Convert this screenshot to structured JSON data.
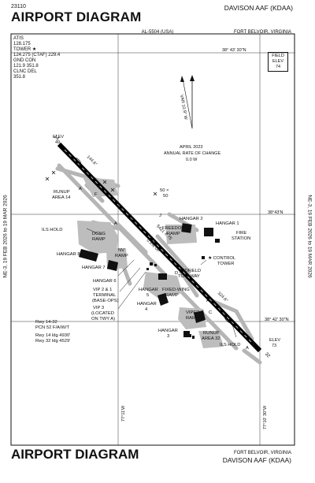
{
  "header": {
    "chart_number": "23110",
    "title": "AIRPORT DIAGRAM",
    "airport": "DAVISON AAF  (KDAA)",
    "chart_id": "AL-5504 (USA)",
    "location": "FORT BELVOIR, VIRGINIA"
  },
  "footer": {
    "title": "AIRPORT DIAGRAM",
    "location": "FORT BELVOIR, VIRGINIA",
    "airport": "DAVISON AAF  (KDAA)"
  },
  "side_margin": {
    "left": "NE-3, 19 FEB 2026 to 19 MAR 2026",
    "right": "NE-3, 19 FEB 2026 to 19 MAR 2026"
  },
  "frequencies": [
    "ATIS",
    "128.175",
    "TOWER ★",
    "124.275 (CTAF)  229.4",
    "GND CON",
    "121.9  351.8",
    "CLNC DEL",
    "351.8"
  ],
  "field_elev": {
    "line1": "FIELD",
    "line2": "ELEV",
    "value": "74"
  },
  "lat_top": "38° 43′ 30″N",
  "lat_mid": "38°43′N",
  "lat_bottom": "38° 42′ 30″N",
  "lon_left": "77°11′W",
  "lon_right": "77°10′ 30″W",
  "magvar": {
    "var_label": "VAR 10.9° W",
    "date": "APRIL 2023",
    "rate_title": "ANNUAL RATE OF CHANGE",
    "rate": "0.0 W"
  },
  "runway": {
    "end_nw": "14",
    "end_se": "32",
    "hdg_nw": "144.6°",
    "hdg_se": "324.6°",
    "dims": "5421 X 75",
    "slope": "0.5% UP",
    "elev_nw_label": "ELEV",
    "elev_nw": "49",
    "elev_se_label": "ELEV",
    "elev_se": "73"
  },
  "labels": {
    "runup14_l1": "RUNUP",
    "runup14_l2": "AREA 14",
    "ils_hold_nw": "ILS HOLD",
    "dcng_l1": "DCNG",
    "dcng_l2": "RAMP",
    "hangar8": "HANGAR 8",
    "nv_l1": "NV",
    "nv_l2": "RAMP",
    "hangar7": "HANGAR 7",
    "hangar6": "HANGAR 6",
    "vip21_l1": "VIP 2 & 1",
    "vip21_l2": "TERMINAL",
    "vip21_l3": "(BASE-OPS)",
    "vip3_l1": "VIP 3",
    "vip3_l2": "(LOCATED",
    "vip3_l3": "ON TWY A)",
    "hangar2": "HANGAR 2",
    "hangar1": "HANGAR 1",
    "freedom_l1": "FREEDOM",
    "freedom_l2": "RAMP",
    "fire_l1": "FIRE",
    "fire_l2": "STATION",
    "tower_l1": "★ CONTROL",
    "tower_l2": "TOWER",
    "midfield_l1": "MIDFIELD",
    "midfield_l2": "TOW-WAY",
    "hangar5": "HANGAR",
    "hangar5_num": "5",
    "fixedwing_l1": "FIXED-WING",
    "fixedwing_l2": "RAMP",
    "hangar4_l1": "HANGAR",
    "hangar4_l2": "4",
    "viper_l1": "VIPER",
    "viper_l2": "RAMP",
    "hangar3_l1": "HANGAR",
    "hangar3_l2": "3",
    "runup32_l1": "RUNUP",
    "runup32_l2": "AREA 32",
    "ils_hold_se": "ILS HOLD",
    "obstacle": "50 ×",
    "obstacle2": "50"
  },
  "taxiways": [
    "A",
    "B",
    "C",
    "D",
    "E",
    "F",
    "J"
  ],
  "runway_data": [
    "Rwy 14-32",
    "PCN 52 F/A/W/T",
    "Rwy 14 ldg 4930′",
    "Rwy 32 ldg 4529′"
  ]
}
